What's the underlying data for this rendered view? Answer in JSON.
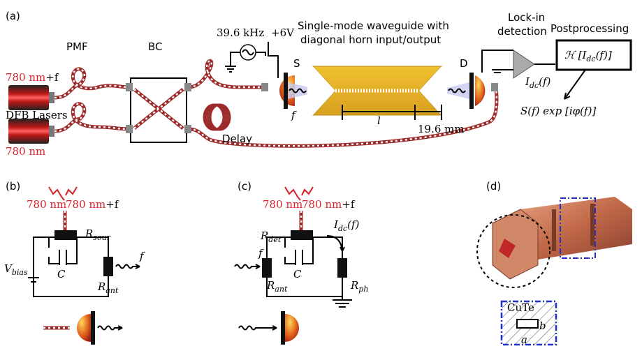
{
  "panel_a": {
    "label": "(a)",
    "pmf": "PMF",
    "bc": "BC",
    "frequency": "39.6 kHz",
    "voltage": "+6V",
    "waveguide_title": [
      "Single-mode waveguide with",
      "diagonal horn input/output"
    ],
    "lockin": [
      "Lock-in",
      "detection"
    ],
    "postprocessing": "Postprocessing",
    "transform": {
      "pre": "ℋ [I",
      "sub": "dc",
      "post": "(f)]"
    },
    "laser_top": {
      "wavelength": "780 nm",
      "offset": "+f"
    },
    "lasers": "DFB Lasers",
    "laser_bottom": "780 nm",
    "delay": "Delay",
    "source": "S",
    "source_freq": "f",
    "length": "l",
    "horn_length": "19.6 mm",
    "detector": "D",
    "current": {
      "pre": "I",
      "sub": "dc",
      "post": "(f)"
    },
    "output": "S(f) exp [iφ(f)]"
  },
  "panel_b": {
    "label": "(b)",
    "beam_left": "780 nm",
    "beam_right": {
      "wavelength": "780 nm",
      "offset": "+f"
    },
    "r_source": {
      "main": "R",
      "sub": "sour"
    },
    "capacitor": "C",
    "freq": "f",
    "v_bias": {
      "main": "V",
      "sub": "bias"
    },
    "r_antenna": {
      "main": "R",
      "sub": "ant"
    }
  },
  "panel_c": {
    "label": "(c)",
    "beam_left": "780 nm",
    "beam_right": {
      "wavelength": "780 nm",
      "offset": "+f"
    },
    "r_detector": {
      "main": "R",
      "sub": "det"
    },
    "current": {
      "pre": "I",
      "sub": "dc",
      "post": "(f)"
    },
    "freq": "f",
    "capacitor": "C",
    "r_antenna": {
      "main": "R",
      "sub": "ant"
    },
    "r_photo": {
      "main": "R",
      "sub": "ph"
    }
  },
  "panel_d": {
    "label": "(d)",
    "material": "CuTe",
    "dim_a": "a",
    "dim_b": "b"
  }
}
